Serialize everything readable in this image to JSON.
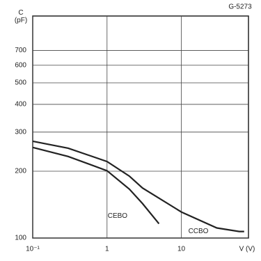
{
  "chart_data": {
    "type": "line",
    "code": "G-5273",
    "ylabel": "C\n(pF)",
    "xlabel": "V (V)",
    "log_x": true,
    "log_y": true,
    "grid": true,
    "xlim": [
      0.1,
      80
    ],
    "ylim": [
      100,
      1000
    ],
    "xticks": [
      {
        "value": 0.1,
        "label": "10⁻¹"
      },
      1,
      10
    ],
    "yticks": [
      100,
      200,
      300,
      400,
      500,
      600,
      700
    ],
    "series": [
      {
        "name": "CCBO",
        "color": "#222222",
        "x": [
          0.1,
          0.3,
          1,
          2,
          3,
          10,
          30,
          60,
          70
        ],
        "values": [
          273,
          254,
          221,
          190,
          168,
          131,
          111,
          107,
          107
        ]
      },
      {
        "name": "CEBO",
        "color": "#222222",
        "x": [
          0.1,
          0.3,
          1,
          2,
          3,
          5
        ],
        "values": [
          256,
          233,
          201,
          166,
          143,
          116
        ]
      }
    ]
  }
}
